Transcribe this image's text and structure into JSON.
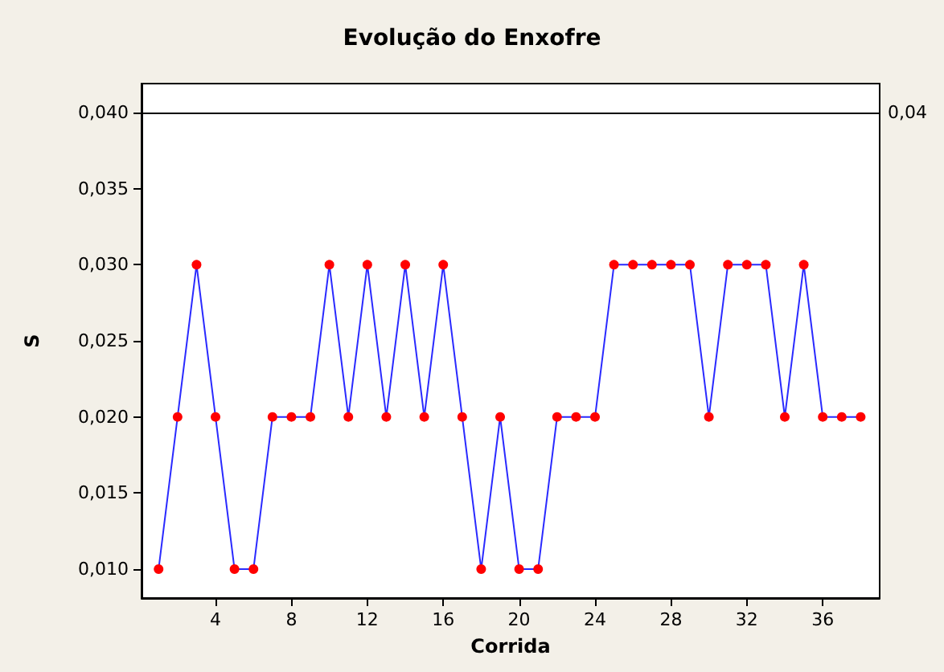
{
  "chart_data": {
    "type": "line",
    "title": "Evolução do Enxofre",
    "xlabel": "Corrida",
    "ylabel": "S",
    "x": [
      1,
      2,
      3,
      4,
      5,
      6,
      7,
      8,
      9,
      10,
      11,
      12,
      13,
      14,
      15,
      16,
      17,
      18,
      19,
      20,
      21,
      22,
      23,
      24,
      25,
      26,
      27,
      28,
      29,
      30,
      31,
      32,
      33,
      34,
      35,
      36,
      37,
      38
    ],
    "series": [
      {
        "color": "#2a2aff",
        "colors": [
          "#ff0000",
          "#ff0000",
          "#ff0000",
          "#ff0000",
          "#ff0000",
          "#ff0000",
          "#ff0000",
          "#ff0000",
          "#ff0000",
          "#ff0000",
          "#ff0000",
          "#ff0000",
          "#ff0000",
          "#ff0000",
          "#ff0000",
          "#ff0000",
          "#ff0000",
          "#ff0000",
          "#ff0000",
          "#ff0000",
          "#ff0000",
          "#ff0000",
          "#ff0000",
          "#ff0000",
          "#ff0000",
          "#ff0000",
          "#ff0000",
          "#ff0000",
          "#ff0000",
          "#ff0000",
          "#ff0000",
          "#ff0000",
          "#ff0000",
          "#ff0000",
          "#ff0000",
          "#ff0000",
          "#ff0000",
          "#ff0000"
        ],
        "values": [
          0.01,
          0.02,
          0.03,
          0.02,
          0.01,
          0.01,
          0.02,
          0.02,
          0.02,
          0.03,
          0.02,
          0.03,
          0.02,
          0.03,
          0.02,
          0.03,
          0.02,
          0.01,
          0.02,
          0.01,
          0.01,
          0.02,
          0.02,
          0.02,
          0.03,
          0.03,
          0.03,
          0.03,
          0.03,
          0.02,
          0.03,
          0.03,
          0.03,
          0.02,
          0.03,
          0.02,
          0.02,
          0.02
        ]
      }
    ],
    "xlim": [
      0.1,
      39
    ],
    "xticks": [
      4,
      8,
      12,
      16,
      20,
      24,
      28,
      32,
      36
    ],
    "ylim": [
      0.0081,
      0.0419
    ],
    "yticks": [
      {
        "value": 0.01,
        "label": "0,010"
      },
      {
        "value": 0.015,
        "label": "0,015"
      },
      {
        "value": 0.02,
        "label": "0,020"
      },
      {
        "value": 0.025,
        "label": "0,025"
      },
      {
        "value": 0.03,
        "label": "0,030"
      },
      {
        "value": 0.035,
        "label": "0,035"
      },
      {
        "value": 0.04,
        "label": "0,040"
      }
    ],
    "ref_lines": [
      {
        "axis": "y",
        "value": 0.04,
        "label": "0,04",
        "color": "#000000"
      }
    ],
    "marker": "circle",
    "line_style": "solid",
    "grid": false
  }
}
